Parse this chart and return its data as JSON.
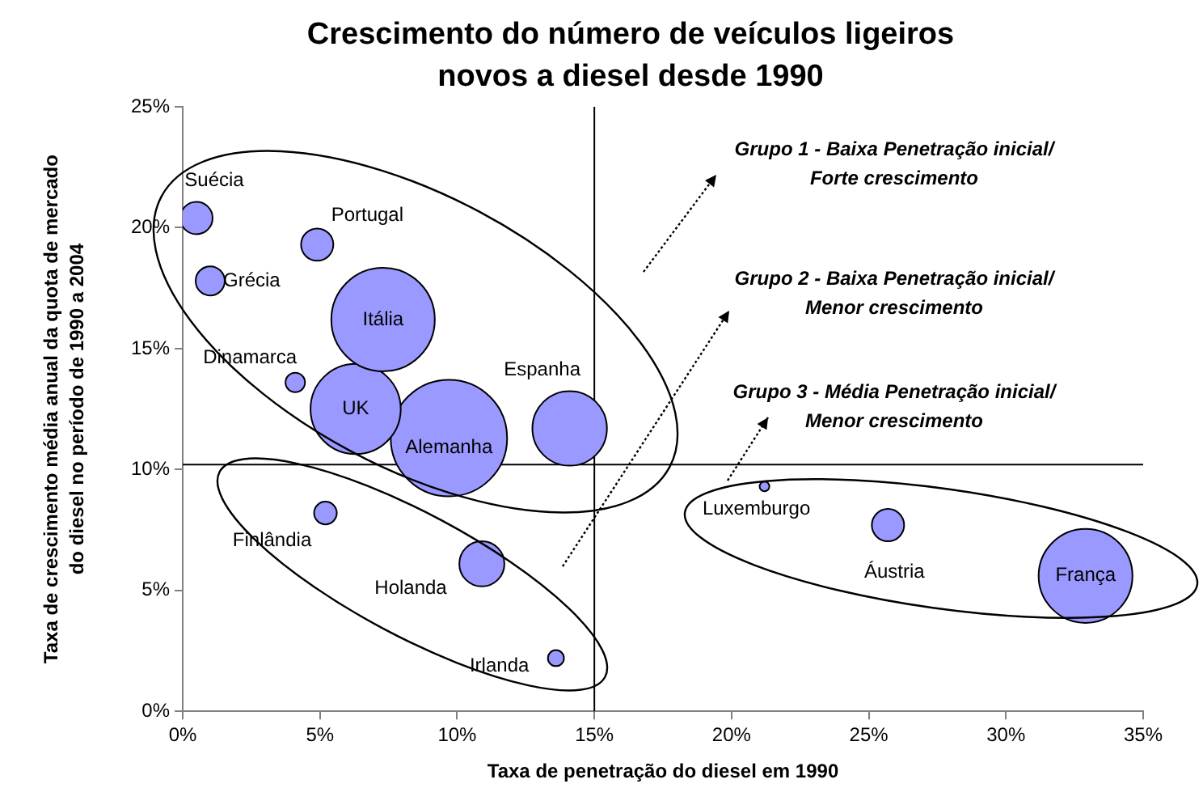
{
  "chart_data": {
    "type": "bubble",
    "title": "Crescimento do número de veículos ligeiros novos a diesel desde 1990",
    "xlabel": "Taxa de penetração do diesel em 1990",
    "ylabel": "Taxa de crescimento média anual da quota de mercado do diesel no período de 1990 a 2004",
    "xlim": [
      0,
      35
    ],
    "ylim": [
      0,
      25
    ],
    "xticks": [
      {
        "value": 0,
        "label": "0%"
      },
      {
        "value": 5,
        "label": "5%"
      },
      {
        "value": 10,
        "label": "10%"
      },
      {
        "value": 15,
        "label": "15%"
      },
      {
        "value": 20,
        "label": "20%"
      },
      {
        "value": 25,
        "label": "25%"
      },
      {
        "value": 30,
        "label": "30%"
      },
      {
        "value": 35,
        "label": "35%"
      }
    ],
    "yticks": [
      {
        "value": 0,
        "label": "0%"
      },
      {
        "value": 5,
        "label": "5%"
      },
      {
        "value": 10,
        "label": "10%"
      },
      {
        "value": 15,
        "label": "15%"
      },
      {
        "value": 20,
        "label": "20%"
      },
      {
        "value": 25,
        "label": "25%"
      }
    ],
    "grid": false,
    "legend": false,
    "ref_lines": [
      {
        "axis": "x",
        "value": 15,
        "color": "#000000"
      },
      {
        "axis": "y",
        "value": 10.2,
        "color": "#000000"
      }
    ],
    "annotations": [
      "Grupo 1 - Baixa Penetração inicial/ Forte crescimento",
      "Grupo 2 - Baixa Penetração inicial/ Menor crescimento",
      "Grupo 3 - Média Penetração inicial/ Menor crescimento"
    ],
    "series": [
      {
        "name": "Suécia",
        "color": "#9999ff",
        "x": [
          0.5
        ],
        "values": [
          20.4
        ],
        "sizes": [
          0.077
        ]
      },
      {
        "name": "Portugal",
        "color": "#9999ff",
        "x": [
          4.9
        ],
        "values": [
          19.3
        ],
        "sizes": [
          0.077
        ]
      },
      {
        "name": "Grécia",
        "color": "#9999ff",
        "x": [
          1.0
        ],
        "values": [
          17.8
        ],
        "sizes": [
          0.0625
        ]
      },
      {
        "name": "Itália",
        "color": "#9999ff",
        "x": [
          7.3
        ],
        "values": [
          16.2
        ],
        "sizes": [
          0.79
        ]
      },
      {
        "name": "Dinamarca",
        "color": "#9999ff",
        "x": [
          4.1
        ],
        "values": [
          13.6
        ],
        "sizes": [
          0.028
        ]
      },
      {
        "name": "UK",
        "color": "#9999ff",
        "x": [
          6.3
        ],
        "values": [
          12.5
        ],
        "sizes": [
          0.6
        ]
      },
      {
        "name": "Alemanha",
        "color": "#9999ff",
        "x": [
          9.7
        ],
        "values": [
          11.3
        ],
        "sizes": [
          1
        ]
      },
      {
        "name": "Espanha",
        "color": "#9999ff",
        "x": [
          14.1
        ],
        "values": [
          11.7
        ],
        "sizes": [
          0.41
        ]
      },
      {
        "name": "Finlândia",
        "color": "#9999ff",
        "x": [
          5.2
        ],
        "values": [
          8.2
        ],
        "sizes": [
          0.038
        ]
      },
      {
        "name": "Holanda",
        "color": "#9999ff",
        "x": [
          10.9
        ],
        "values": [
          6.1
        ],
        "sizes": [
          0.15
        ]
      },
      {
        "name": "Irlanda",
        "color": "#9999ff",
        "x": [
          13.6
        ],
        "values": [
          2.2
        ],
        "sizes": [
          0.019
        ]
      },
      {
        "name": "Luxemburgo",
        "color": "#9999ff",
        "x": [
          21.2
        ],
        "values": [
          9.3
        ],
        "sizes": [
          0.007
        ]
      },
      {
        "name": "Áustria",
        "color": "#9999ff",
        "x": [
          25.7
        ],
        "values": [
          7.7
        ],
        "sizes": [
          0.077
        ]
      },
      {
        "name": "França",
        "color": "#9999ff",
        "x": [
          32.9
        ],
        "values": [
          5.6
        ],
        "sizes": [
          0.65
        ]
      }
    ]
  }
}
